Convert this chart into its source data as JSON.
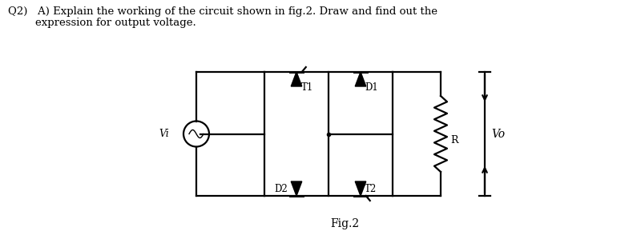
{
  "title_line1": "Q2)   A) Explain the working of the circuit shown in fig.2. Draw and find out the",
  "title_line2": "        expression for output voltage.",
  "fig_label": "Fig.2",
  "bg_color": "#ffffff",
  "circuit_color": "#000000",
  "label_T1": "T1",
  "label_T2": "T2",
  "label_D1": "D1",
  "label_D2": "D2",
  "label_Vi": "Vi",
  "label_Vo": "Vo",
  "label_R": "R"
}
